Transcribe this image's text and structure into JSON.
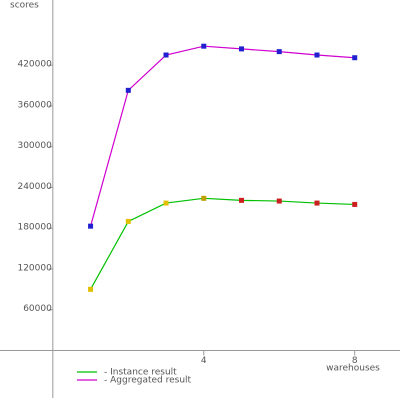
{
  "chart_data": {
    "type": "line",
    "y_label": "scores",
    "x_label": "warehouses",
    "x": [
      1,
      2,
      3,
      4,
      5,
      6,
      7,
      8
    ],
    "series": [
      {
        "name": "- Instance result",
        "color": "#00c000",
        "marker_colors": [
          "#e0c000",
          "#e0c000",
          "#e0c000",
          "#c0a000",
          "#cc2020",
          "#cc2020",
          "#cc2020",
          "#cc2020"
        ],
        "values": [
          90000,
          190000,
          217000,
          224000,
          221000,
          220000,
          217000,
          215000
        ]
      },
      {
        "name": "- Aggregated result",
        "color": "#d000d0",
        "marker_colors": [
          "#2020d0",
          "#2020d0",
          "#2020d0",
          "#2020d0",
          "#2020d0",
          "#2020d0",
          "#2020d0",
          "#2020d0"
        ],
        "values": [
          183000,
          383000,
          435000,
          448000,
          444000,
          440000,
          435000,
          431000
        ]
      }
    ],
    "xlim": [
      -1.4,
      9.2
    ],
    "ylim": [
      -70000,
      516000
    ],
    "xticks": [
      4,
      8
    ],
    "yticks": [
      60000,
      120000,
      180000,
      240000,
      300000,
      360000,
      420000
    ]
  }
}
